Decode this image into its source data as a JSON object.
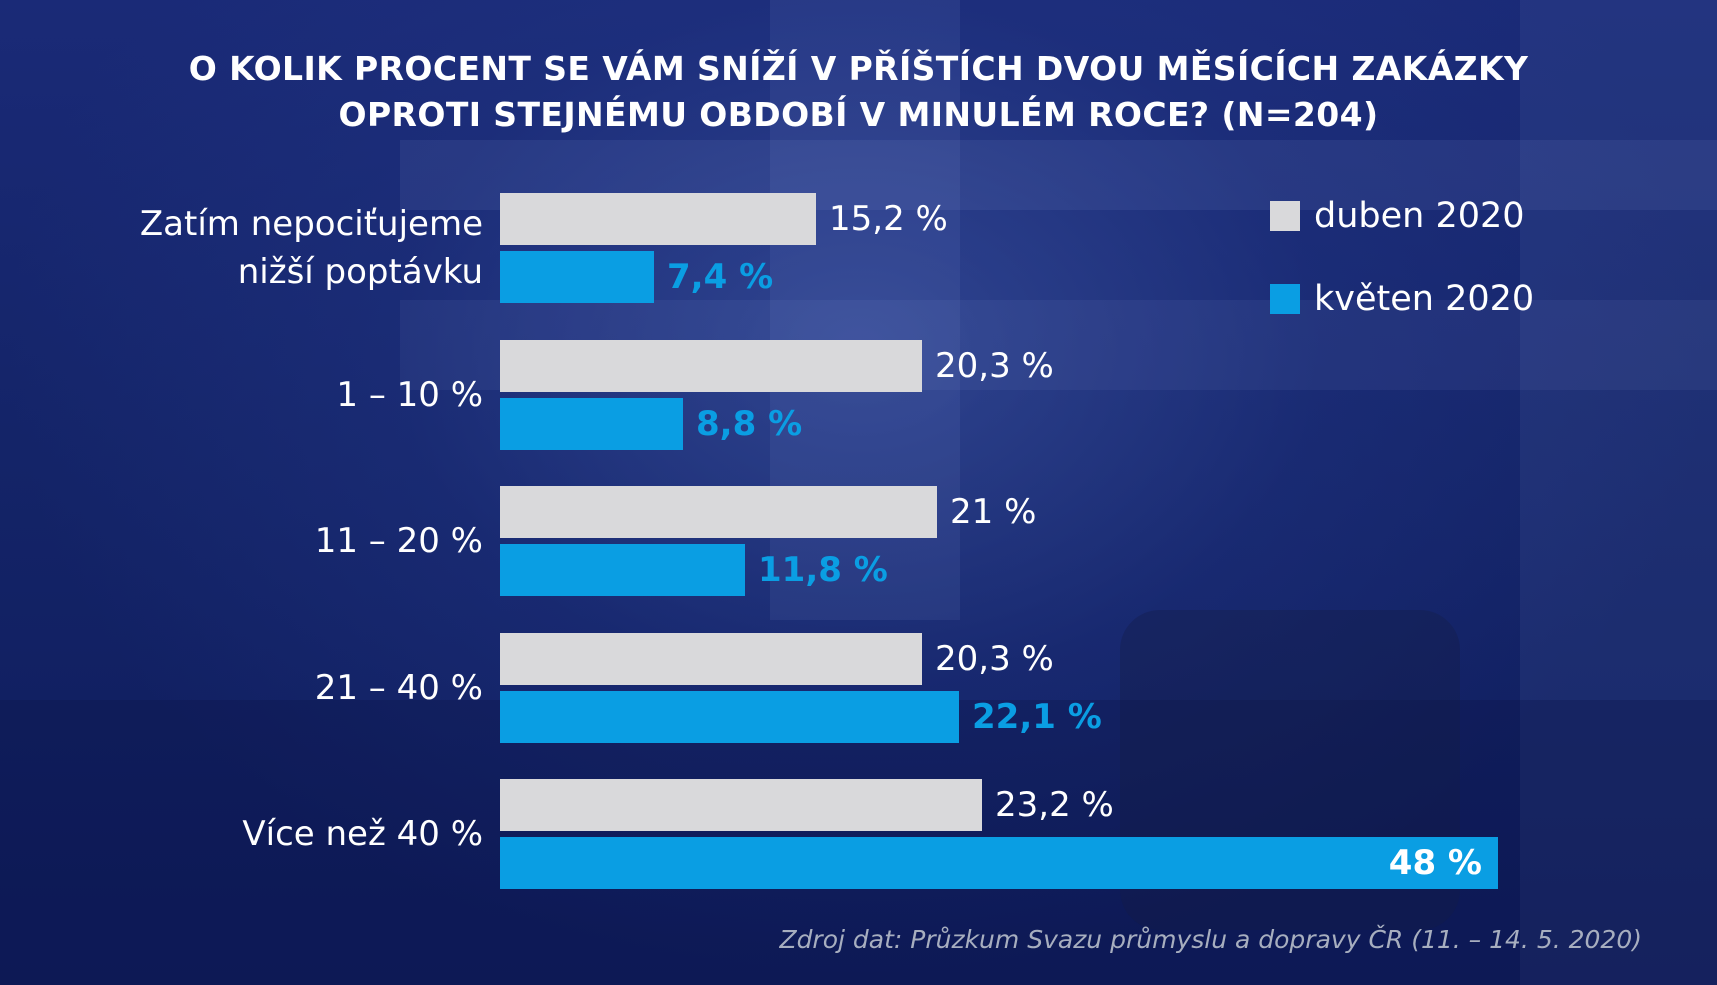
{
  "title": {
    "line1": "O KOLIK PROCENT SE VÁM SNÍŽÍ V PŘÍŠTÍCH DVOU MĚSÍCÍCH ZAKÁZKY",
    "line2": "OPROTI STEJNÉMU OBDOBÍ V MINULÉM ROCE? (N=204)"
  },
  "legend": {
    "items": [
      {
        "label": "duben 2020",
        "color": "#d9d9db"
      },
      {
        "label": "květen 2020",
        "color": "#0a9ee3"
      }
    ]
  },
  "source": "Zdroj dat: Průzkum Svazu průmyslu a dopravy ČR (11. – 14. 5. 2020)",
  "chart_data": {
    "type": "bar",
    "orientation": "horizontal",
    "categories": [
      [
        "Zatím nepociťujeme",
        "nižší poptávku"
      ],
      [
        "1 – 10 %"
      ],
      [
        "11 – 20 %"
      ],
      [
        "21 – 40 %"
      ],
      [
        "Více než 40 %"
      ]
    ],
    "series": [
      {
        "name": "duben 2020",
        "values": [
          15.2,
          20.3,
          21,
          20.3,
          23.2
        ],
        "labels": [
          "15,2 %",
          "20,3 %",
          "21 %",
          "20,3 %",
          "23,2 %"
        ],
        "color": "#d9d9db"
      },
      {
        "name": "květen 2020",
        "values": [
          7.4,
          8.8,
          11.8,
          22.1,
          48
        ],
        "labels": [
          "7,4 %",
          "8,8 %",
          "11,8 %",
          "22,1 %",
          "48 %"
        ],
        "color": "#0a9ee3"
      }
    ],
    "xlim": [
      0,
      48
    ],
    "grid": false,
    "legend_position": "top-right"
  }
}
